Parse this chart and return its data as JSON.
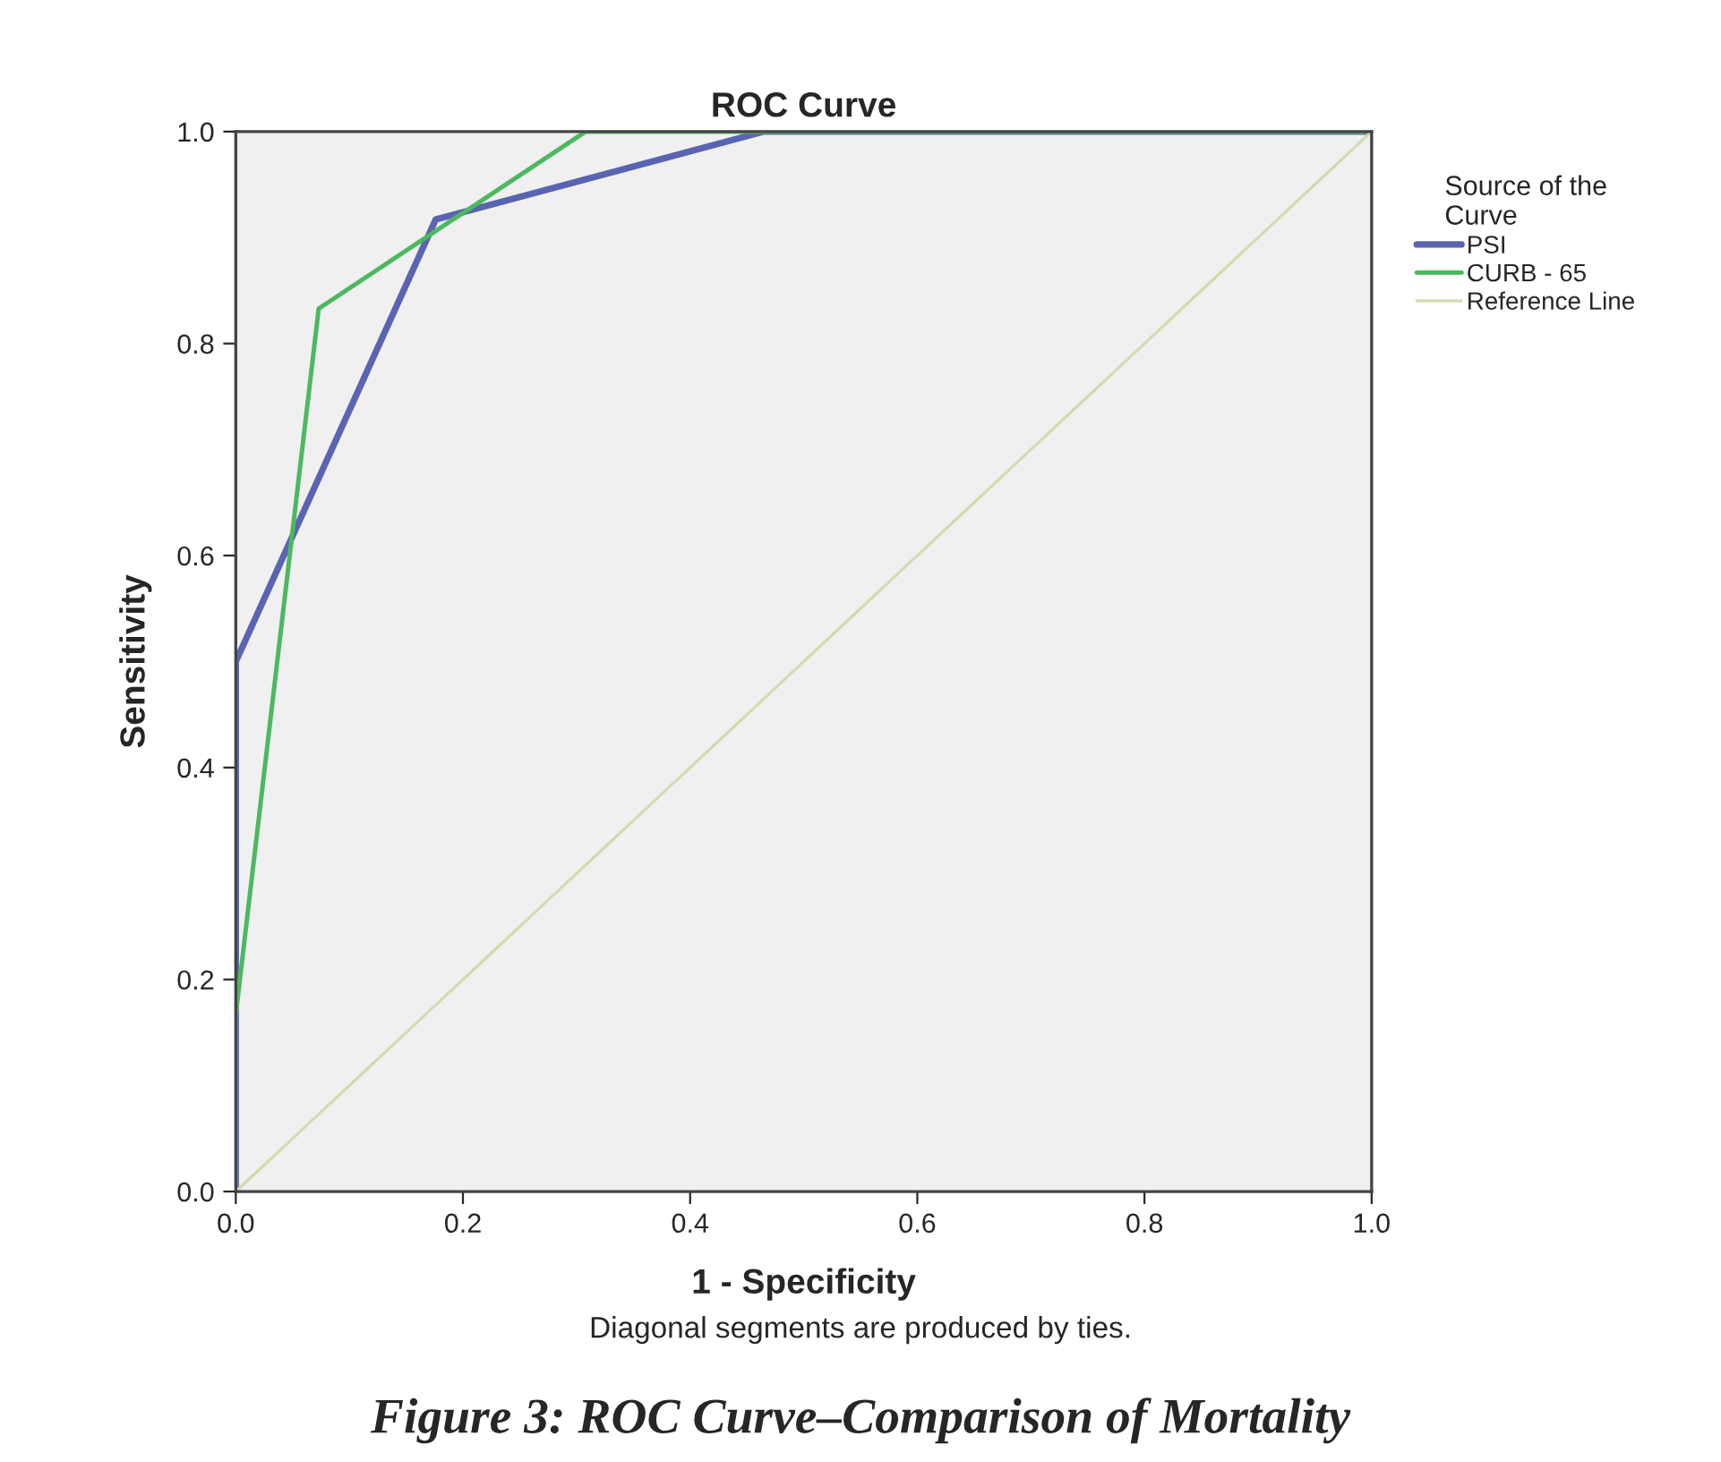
{
  "chart_data": {
    "type": "line",
    "title": "ROC Curve",
    "xlabel": "1 - Specificity",
    "ylabel": "Sensitivity",
    "legend_title": "Source of the\nCurve",
    "series": [
      {
        "name": "PSI",
        "color": "#5a64b0",
        "x": [
          0,
          0,
          0.176,
          0.465,
          1
        ],
        "values": [
          0,
          0.5,
          0.917,
          1,
          1
        ]
      },
      {
        "name": "CURB - 65",
        "color": "#4cb860",
        "x": [
          0,
          0,
          0.073,
          0.308,
          1
        ],
        "values": [
          0,
          0.167,
          0.833,
          1,
          1
        ]
      },
      {
        "name": "Reference Line",
        "color": "#d6dab0",
        "x": [
          0,
          1
        ],
        "values": [
          0,
          1
        ]
      }
    ],
    "xlim": [
      0,
      1
    ],
    "ylim": [
      0,
      1
    ],
    "xticks": [
      {
        "value": 0,
        "label": "0.0"
      },
      0.2,
      0.4,
      0.6,
      0.8,
      {
        "value": 1,
        "label": "1.0"
      }
    ],
    "yticks": [
      {
        "value": 0,
        "label": "0.0"
      },
      0.2,
      0.4,
      0.6,
      0.8,
      {
        "value": 1,
        "label": "1.0"
      }
    ],
    "grid": false,
    "legend": "right",
    "marker": "none",
    "line_style": "solid",
    "annotations": [
      "Diagonal segments are produced by ties.",
      "Figure 3: ROC Curve–Comparison of Mortality"
    ]
  }
}
